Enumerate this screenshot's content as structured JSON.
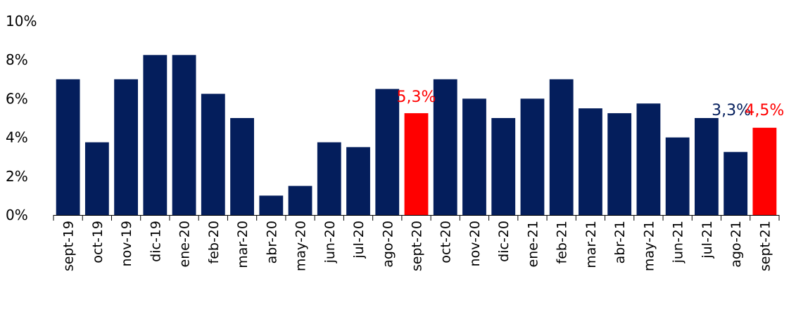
{
  "chart_data": {
    "type": "bar",
    "title": "",
    "xlabel": "",
    "ylabel": "",
    "ylim": [
      0,
      10
    ],
    "y_ticks": [
      "0%",
      "2%",
      "4%",
      "6%",
      "8%",
      "10%"
    ],
    "y_tick_values": [
      0,
      2,
      4,
      6,
      8,
      10
    ],
    "grid": false,
    "categories": [
      "sept-19",
      "oct-19",
      "nov-19",
      "dic-19",
      "ene-20",
      "feb-20",
      "mar-20",
      "abr-20",
      "may-20",
      "jun-20",
      "jul-20",
      "ago-20",
      "sept-20",
      "oct-20",
      "nov-20",
      "dic-20",
      "ene-21",
      "feb-21",
      "mar-21",
      "abr-21",
      "may-21",
      "jun-21",
      "jul-21",
      "ago-21",
      "sept-21"
    ],
    "values": [
      7.0,
      3.75,
      7.0,
      8.25,
      8.25,
      6.25,
      5.0,
      1.0,
      1.5,
      3.75,
      3.5,
      6.5,
      5.25,
      7.0,
      6.0,
      5.0,
      6.0,
      7.0,
      5.5,
      5.25,
      5.75,
      4.0,
      5.0,
      3.25,
      4.5
    ],
    "highlighted": [
      "sept-20",
      "sept-21"
    ],
    "colors": {
      "default": "#041e5c",
      "highlight": "#ff0000"
    },
    "data_labels": [
      {
        "category": "sept-20",
        "text": "5,3%",
        "color": "#ff0000"
      },
      {
        "category": "ago-21",
        "text": "3,3%",
        "color": "#041e5c"
      },
      {
        "category": "sept-21",
        "text": "4,5%",
        "color": "#ff0000"
      }
    ]
  }
}
